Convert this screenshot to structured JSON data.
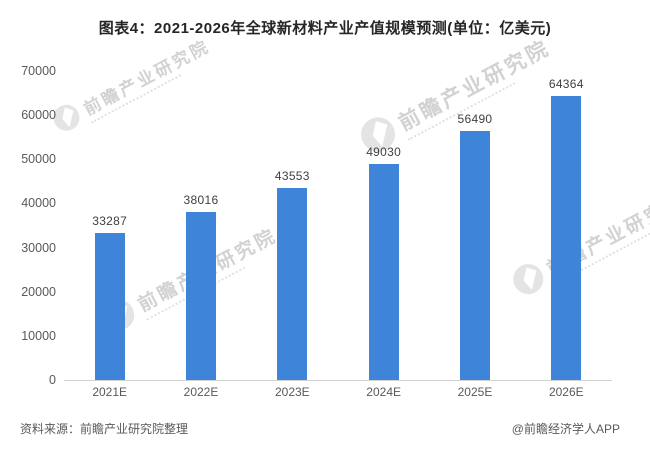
{
  "title": "图表4：2021-2026年全球新材料产业产值规模预测(单位：亿美元)",
  "chart_data": {
    "type": "bar",
    "title": "图表4：2021-2026年全球新材料产业产值规模预测(单位：亿美元)",
    "categories": [
      "2021E",
      "2022E",
      "2023E",
      "2024E",
      "2025E",
      "2026E"
    ],
    "values": [
      33287,
      38016,
      43553,
      49030,
      56490,
      64364
    ],
    "unit": "亿美元",
    "xlabel": "",
    "ylabel": "",
    "ylim": [
      0,
      70000
    ],
    "yticks": [
      0,
      10000,
      20000,
      30000,
      40000,
      50000,
      60000,
      70000
    ],
    "grid": false,
    "legend": "none",
    "data_labels": true,
    "bar_color": "#3E84D8",
    "axis_text_color": "#595959",
    "label_text_color": "#3f3f3f"
  },
  "watermark": {
    "text": "前瞻产业研究院"
  },
  "footer": {
    "source": "资料来源：前瞻产业研究院整理",
    "attribution": "@前瞻经济学人APP"
  }
}
